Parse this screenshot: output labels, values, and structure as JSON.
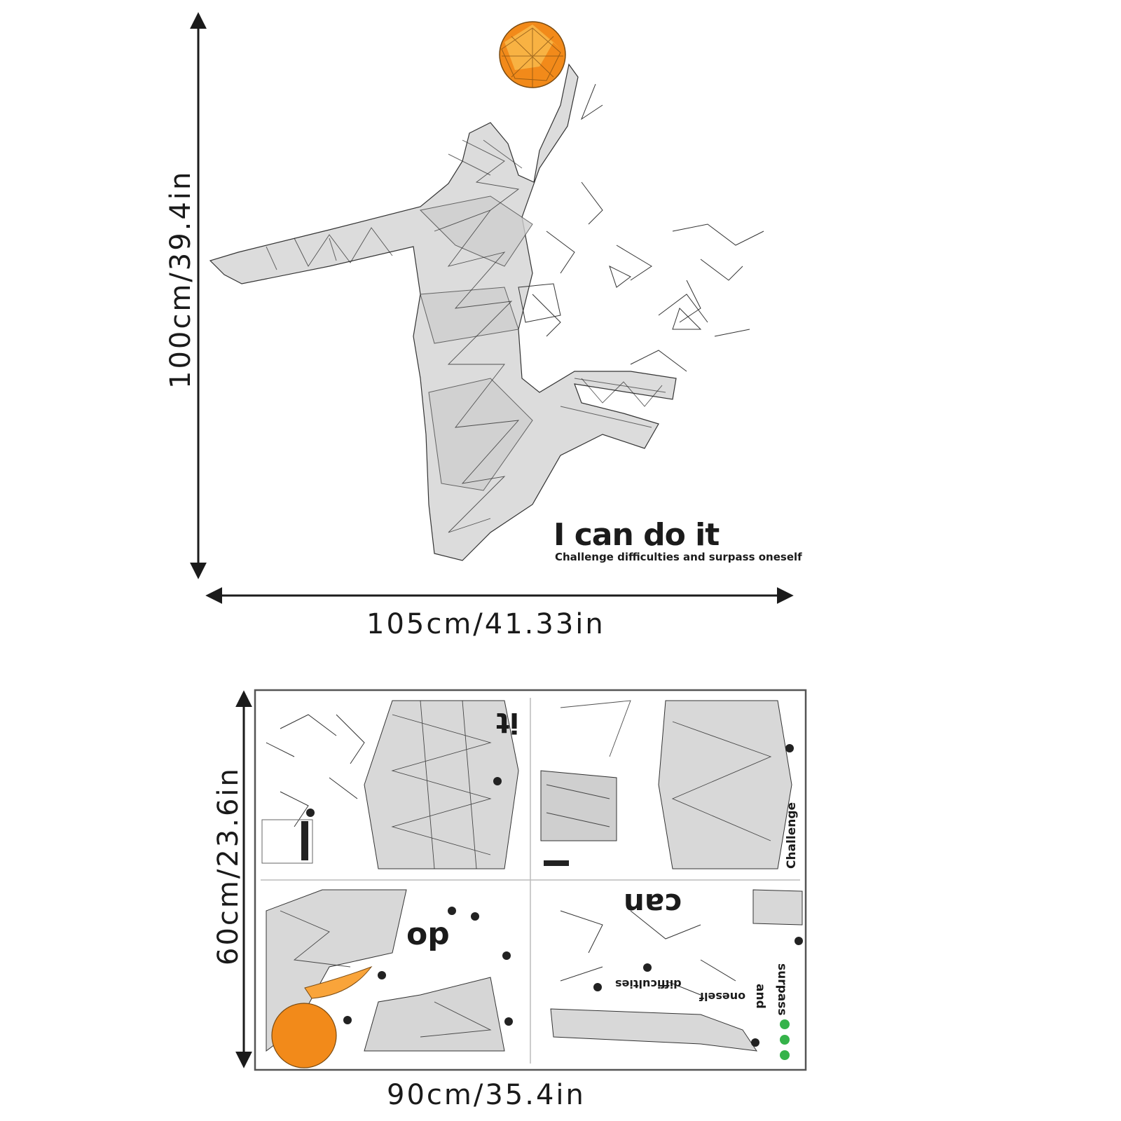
{
  "assembled": {
    "height_label": "100cm/39.4in",
    "width_label": "105cm/41.33in",
    "slogan_title": "I can do it",
    "slogan_subtitle": "Challenge difficulties and surpass oneself"
  },
  "sheet": {
    "height_label": "60cm/23.6in",
    "width_label": "90cm/35.4in",
    "words": {
      "it": "it",
      "do": "do",
      "can": "can",
      "challenge": "Challenge",
      "difficulties": "difficulties",
      "and": "and",
      "surpass": "surpass",
      "oneself": "oneself"
    }
  },
  "colors": {
    "ink": "#1b1b1b",
    "mesh_fill": "#d9d9d9",
    "ball_orange": "#f28a1a",
    "ball_light": "#f9b94b",
    "accent_green": "#35b34a"
  },
  "icons": [
    "basketball-icon",
    "player-silhouette",
    "dimension-arrows"
  ]
}
